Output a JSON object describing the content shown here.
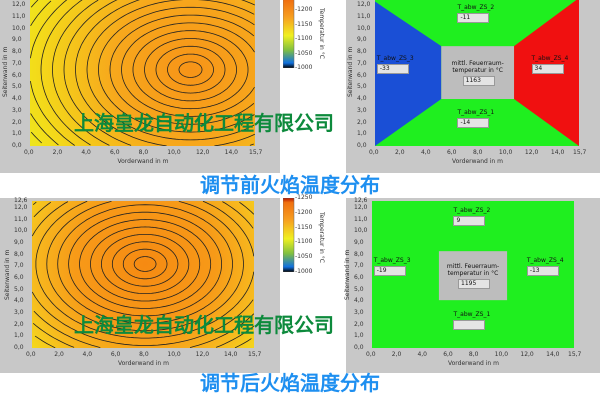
{
  "titles": {
    "before": "调节前火焰温度分布",
    "after": "调节后火焰温度分布"
  },
  "watermark": "上海皇龙自动化工程有限公司",
  "colors": {
    "title": "#1e8ff0",
    "watermark": "#0d8a3c",
    "zone_green": "#1fef1f",
    "zone_blue": "#1a4fd6",
    "zone_red": "#f01010",
    "zone_center": "#bdbdbd"
  },
  "chart_data": [
    {
      "id": "before-contour",
      "type": "heatmap",
      "subtype": "contour",
      "xlabel": "Vorderwand in m",
      "ylabel": "Seitenwand in m",
      "xlim": [
        0,
        15.7
      ],
      "ylim": [
        0,
        12.6
      ],
      "xticks": [
        "0,0",
        "2,0",
        "4,0",
        "6,0",
        "8,0",
        "10,0",
        "12,0",
        "14,0",
        "15,7"
      ],
      "yticks": [
        "0,0",
        "1,0",
        "2,0",
        "3,0",
        "4,0",
        "5,0",
        "6,0",
        "7,0",
        "8,0",
        "9,0",
        "10,0",
        "11,0",
        "12,0"
      ],
      "hotspot": [
        11.2,
        6.5
      ],
      "colorbar": {
        "label": "Temperatur in °C",
        "ticks": [
          "1200",
          "1150",
          "1100",
          "1050",
          "1000"
        ],
        "range": [
          1000,
          1250
        ]
      }
    },
    {
      "id": "before-zones",
      "type": "heatmap",
      "subtype": "zones",
      "xlabel": "Vorderwand in m",
      "ylabel": "Seitenwand in m",
      "xlim": [
        0,
        15.7
      ],
      "ylim": [
        0,
        12.6
      ],
      "xticks": [
        "0,0",
        "2,0",
        "4,0",
        "6,0",
        "8,0",
        "10,0",
        "12,0",
        "14,0",
        "15,7"
      ],
      "yticks": [
        "0,0",
        "1,0",
        "2,0",
        "3,0",
        "4,0",
        "5,0",
        "6,0",
        "7,0",
        "8,0",
        "9,0",
        "10,0",
        "11,0",
        "12,0"
      ],
      "zones": [
        {
          "label": "T_abw_ZS_1",
          "value": "-14"
        },
        {
          "label": "T_abw_ZS_2",
          "value": "-11"
        },
        {
          "label": "T_abw_ZS_3",
          "value": "-33"
        },
        {
          "label": "T_abw_ZS_4",
          "value": "34"
        }
      ],
      "center": {
        "label": "mittl. Feuerraum-temperatur in °C",
        "value": "1163"
      }
    },
    {
      "id": "after-contour",
      "type": "heatmap",
      "subtype": "contour",
      "xlabel": "Vorderwand in m",
      "ylabel": "Seitenwand in m",
      "xlim": [
        0,
        15.7
      ],
      "ylim": [
        0,
        12.6
      ],
      "xticks": [
        "0,0",
        "2,0",
        "4,0",
        "6,0",
        "8,0",
        "10,0",
        "12,0",
        "14,0",
        "15,7"
      ],
      "yticks": [
        "0,0",
        "1,0",
        "2,0",
        "3,0",
        "4,0",
        "5,0",
        "6,0",
        "7,0",
        "8,0",
        "9,0",
        "10,0",
        "11,0",
        "12,0",
        "12,6"
      ],
      "hotspot": [
        8.0,
        7.2
      ],
      "colorbar": {
        "label": "Temperatur in °C",
        "ticks": [
          "1250",
          "1200",
          "1150",
          "1100",
          "1050",
          "1000"
        ],
        "range": [
          1000,
          1250
        ]
      }
    },
    {
      "id": "after-zones",
      "type": "heatmap",
      "subtype": "zones",
      "xlabel": "Vorderwand in m",
      "ylabel": "Seitenwand in m",
      "xlim": [
        0,
        15.7
      ],
      "ylim": [
        0,
        12.6
      ],
      "xticks": [
        "0,0",
        "2,0",
        "4,0",
        "6,0",
        "8,0",
        "10,0",
        "12,0",
        "14,0",
        "15,7"
      ],
      "yticks": [
        "0,0",
        "1,0",
        "2,0",
        "3,0",
        "4,0",
        "5,0",
        "6,0",
        "7,0",
        "8,0",
        "9,0",
        "10,0",
        "11,0",
        "12,0",
        "12,6"
      ],
      "zones": [
        {
          "label": "T_abw_ZS_1",
          "value": ""
        },
        {
          "label": "T_abw_ZS_2",
          "value": "9"
        },
        {
          "label": "T_abw_ZS_3",
          "value": "-19"
        },
        {
          "label": "T_abw_ZS_4",
          "value": "-13"
        }
      ],
      "center": {
        "label": "mittl. Feuerraum-temperatur in °C",
        "value": "1195"
      }
    }
  ]
}
